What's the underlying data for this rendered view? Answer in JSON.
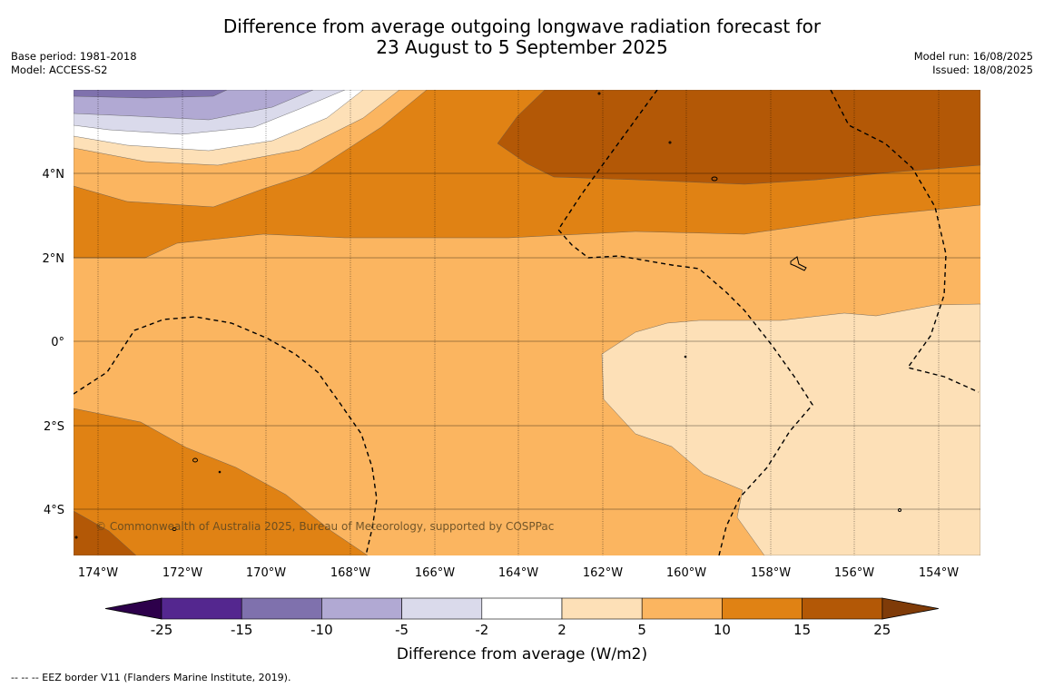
{
  "title": {
    "line1": "Difference from average outgoing longwave radiation forecast for",
    "line2": "23 August to 5 September 2025"
  },
  "meta_left": [
    "Base period: 1981-2018",
    "Model: ACCESS-S2"
  ],
  "meta_right": [
    "Model run: 16/08/2025",
    "Issued: 18/08/2025"
  ],
  "map": {
    "copyright": "© Commonwealth of Australia 2025, Bureau of Meteorology, supported by COSPPac",
    "x_ticks": [
      "174°W",
      "172°W",
      "170°W",
      "168°W",
      "166°W",
      "164°W",
      "162°W",
      "160°W",
      "158°W",
      "156°W",
      "154°W"
    ],
    "y_ticks": [
      "4°N",
      "2°N",
      "0°",
      "2°S",
      "4°S"
    ],
    "lon_range_deg_west": [
      174.6,
      153.0
    ],
    "lat_range": [
      -5.2,
      6.0
    ]
  },
  "colorbar": {
    "levels": [
      "-25",
      "-15",
      "-10",
      "-5",
      "-2",
      "2",
      "5",
      "10",
      "15",
      "25"
    ],
    "colors": [
      "#54278f",
      "#7f71ad",
      "#b1a9d3",
      "#dadaeb",
      "#ffffff",
      "#fde0b7",
      "#fbb560",
      "#e08214",
      "#b35806"
    ],
    "under_color": "#2d004b",
    "over_color": "#7f3b08",
    "title": "Difference from average (W/m2)"
  },
  "footnote": "--  --  -- EEZ border V11 (Flanders Marine Institute, 2019)."
}
